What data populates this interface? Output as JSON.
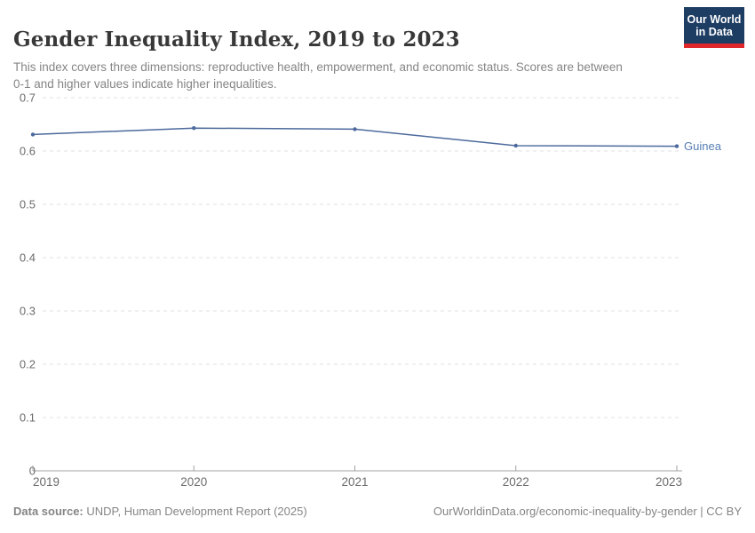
{
  "header": {
    "title": "Gender Inequality Index, 2019 to 2023",
    "subtitle": "This index covers three dimensions: reproductive health, empowerment, and economic status. Scores are between 0-1 and higher values indicate higher inequalities.",
    "logo": {
      "line1": "Our World",
      "line2": "in Data"
    }
  },
  "chart_data": {
    "type": "line",
    "title": "Gender Inequality Index, 2019 to 2023",
    "x": [
      2019,
      2020,
      2021,
      2022,
      2023
    ],
    "series": [
      {
        "name": "Guinea",
        "values": [
          0.631,
          0.643,
          0.641,
          0.61,
          0.609
        ],
        "color": "#4C6A9C"
      }
    ],
    "xlabel": "",
    "ylabel": "",
    "ylim": [
      0,
      0.7
    ],
    "yticks": [
      0,
      0.1,
      0.2,
      0.3,
      0.4,
      0.5,
      0.6,
      0.7
    ],
    "grid": "horizontal-dashed",
    "legend_position": "end-of-line-label"
  },
  "footer": {
    "datasource_label": "Data source:",
    "datasource_value": " UNDP, Human Development Report (2025)",
    "rights": "OurWorldinData.org/economic-inequality-by-gender | CC BY"
  },
  "colors": {
    "line": "#4C6A9C",
    "series_label": "#577eb5",
    "grid": "#e0e0e0",
    "axis": "#a1a1a1",
    "tick_label": "#6b6b6b",
    "title_text": "#383838",
    "muted_text": "#858585",
    "logo_bg": "#1d3d63",
    "logo_accent": "#e0272c"
  }
}
